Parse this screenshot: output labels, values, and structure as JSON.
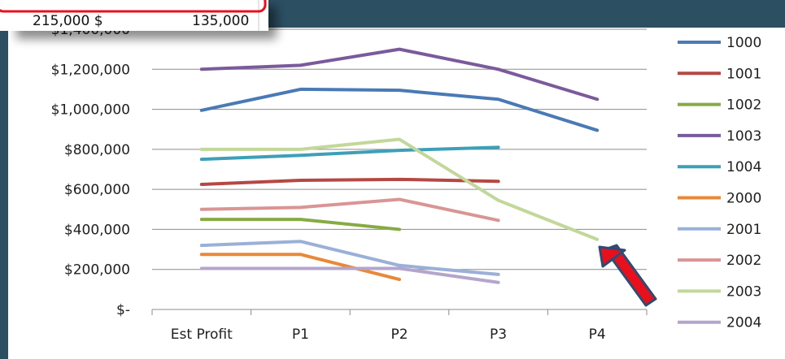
{
  "colors": {
    "background_frame": "#2c4f62",
    "popup_outline": "#e8101c",
    "arrow_fill": "#e8101c",
    "arrow_outline": "#2e4b73",
    "gridline": "#8c8c8c"
  },
  "popup": {
    "cell_left": "215,000 $",
    "cell_right": "135,000"
  },
  "chart_data": {
    "type": "line",
    "categories": [
      "Est Profit",
      "P1",
      "P2",
      "P3",
      "P4"
    ],
    "ylim": [
      0,
      1400000
    ],
    "y_tick_labels": [
      "$-",
      "$200,000",
      "$400,000",
      "$600,000",
      "$800,000",
      "$1,000,000",
      "$1,200,000",
      "$1,400,000"
    ],
    "y_tick_values": [
      0,
      200000,
      400000,
      600000,
      800000,
      1000000,
      1200000,
      1400000
    ],
    "grid": "horizontal",
    "legend_position": "right",
    "series": [
      {
        "name": "1000",
        "color": "#4a7ab5",
        "values": [
          995000,
          1100000,
          1095000,
          1050000,
          895000
        ]
      },
      {
        "name": "1001",
        "color": "#b64844",
        "values": [
          625000,
          645000,
          650000,
          640000,
          null
        ]
      },
      {
        "name": "1002",
        "color": "#88aa44",
        "values": [
          450000,
          450000,
          400000,
          null,
          null
        ]
      },
      {
        "name": "1003",
        "color": "#7a5a9a",
        "values": [
          1200000,
          1220000,
          1300000,
          1200000,
          1050000
        ]
      },
      {
        "name": "1004",
        "color": "#3da0b8",
        "values": [
          750000,
          770000,
          795000,
          810000,
          null
        ]
      },
      {
        "name": "2000",
        "color": "#e8893a",
        "values": [
          275000,
          275000,
          150000,
          null,
          null
        ]
      },
      {
        "name": "2001",
        "color": "#9ab0d8",
        "values": [
          320000,
          340000,
          220000,
          175000,
          null
        ]
      },
      {
        "name": "2002",
        "color": "#d99494",
        "values": [
          500000,
          510000,
          550000,
          445000,
          null
        ]
      },
      {
        "name": "2003",
        "color": "#c2d79a",
        "values": [
          800000,
          800000,
          850000,
          545000,
          350000
        ]
      },
      {
        "name": "2004",
        "color": "#b4a5cc",
        "values": [
          205000,
          205000,
          205000,
          135000,
          null
        ]
      }
    ]
  }
}
